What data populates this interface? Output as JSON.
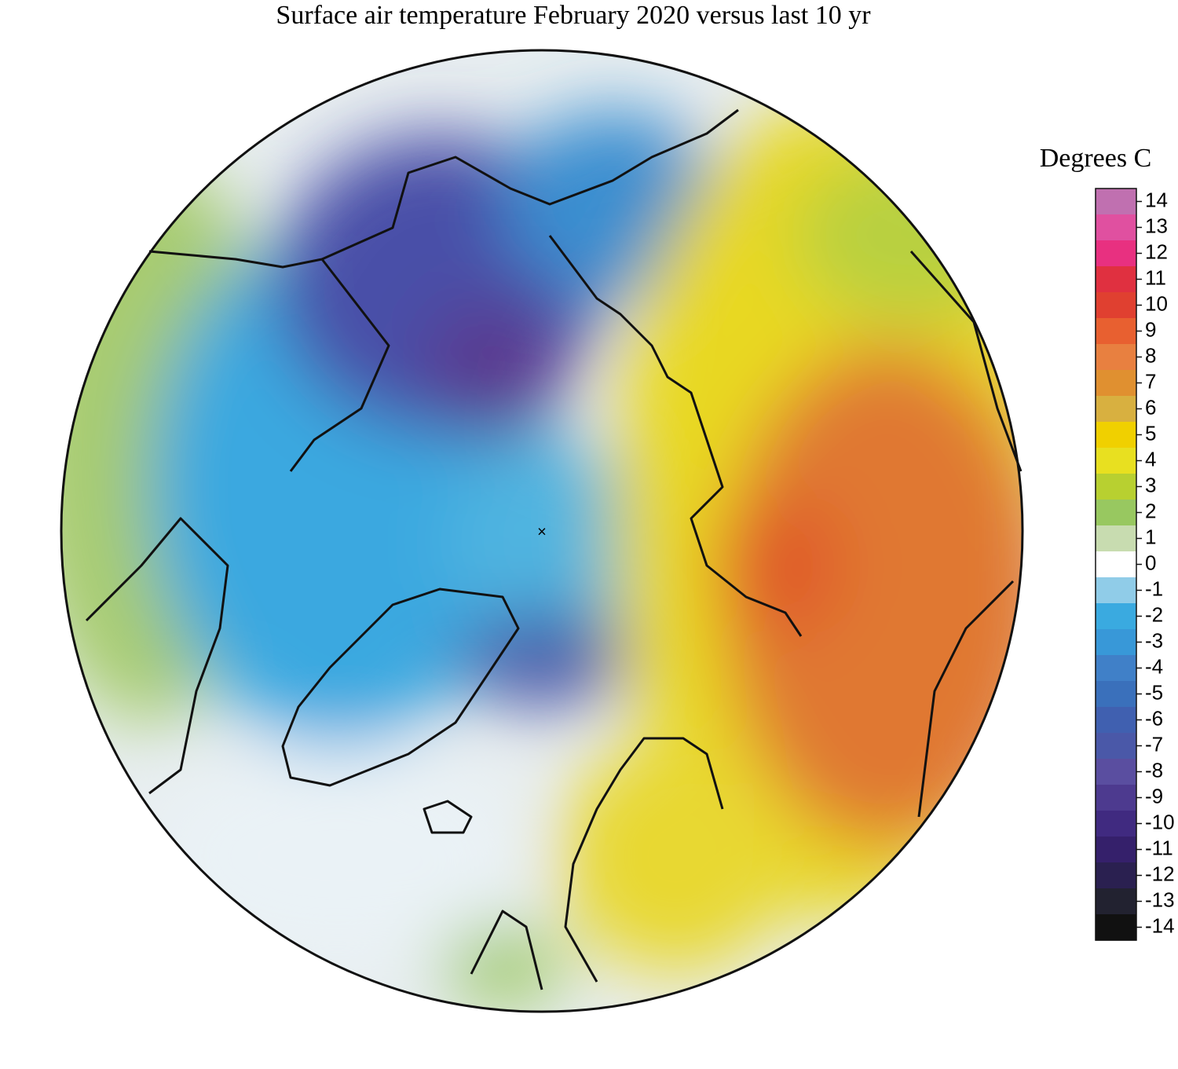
{
  "title": "Surface air temperature February 2020 versus last 10 yr",
  "colorbar": {
    "label": "Degrees C",
    "ticks": [
      14,
      13,
      12,
      11,
      10,
      9,
      8,
      7,
      6,
      5,
      4,
      3,
      2,
      1,
      0,
      -1,
      -2,
      -3,
      -4,
      -5,
      -6,
      -7,
      -8,
      -9,
      -10,
      -11,
      -12,
      -13,
      -14
    ],
    "colors": [
      "#c070b0",
      "#e050a0",
      "#e83080",
      "#e03040",
      "#e04030",
      "#e86030",
      "#e88040",
      "#e09030",
      "#d8b040",
      "#f0d000",
      "#e8e020",
      "#b8d030",
      "#98c860",
      "#c8dcb0",
      "#ffffff",
      "#90cce8",
      "#3aaae0",
      "#3898d8",
      "#4080c8",
      "#3a70bb",
      "#4060b0",
      "#4a58a8",
      "#5a4ea0",
      "#4d3a8f",
      "#402a80",
      "#35206b",
      "#2a2050",
      "#222230",
      "#111111"
    ]
  }
}
